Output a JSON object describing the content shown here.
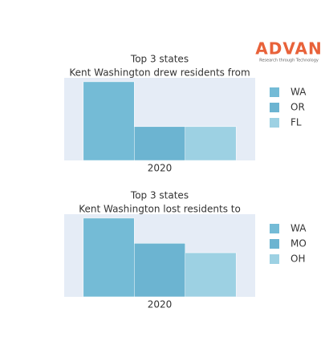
{
  "logo": {
    "name": "ADVAN",
    "tagline": "Research through Technology"
  },
  "chart_data": [
    {
      "type": "bar",
      "title": "Top 3 states",
      "subtitle": "Kent Washington drew residents from",
      "categories": [
        "2020"
      ],
      "ylim": [
        0,
        105
      ],
      "series": [
        {
          "name": "WA",
          "color": "#74bbd6",
          "values": [
            100
          ]
        },
        {
          "name": "OR",
          "color": "#6cb4d1",
          "values": [
            43
          ]
        },
        {
          "name": "FL",
          "color": "#9dd1e3",
          "values": [
            43
          ]
        }
      ]
    },
    {
      "type": "bar",
      "title": "Top 3 states",
      "subtitle": "Kent Washington lost residents to",
      "categories": [
        "2020"
      ],
      "ylim": [
        0,
        105
      ],
      "series": [
        {
          "name": "WA",
          "color": "#74bbd6",
          "values": [
            100
          ]
        },
        {
          "name": "MO",
          "color": "#6cb4d1",
          "values": [
            68
          ]
        },
        {
          "name": "OH",
          "color": "#9dd1e3",
          "values": [
            56
          ]
        }
      ]
    }
  ]
}
